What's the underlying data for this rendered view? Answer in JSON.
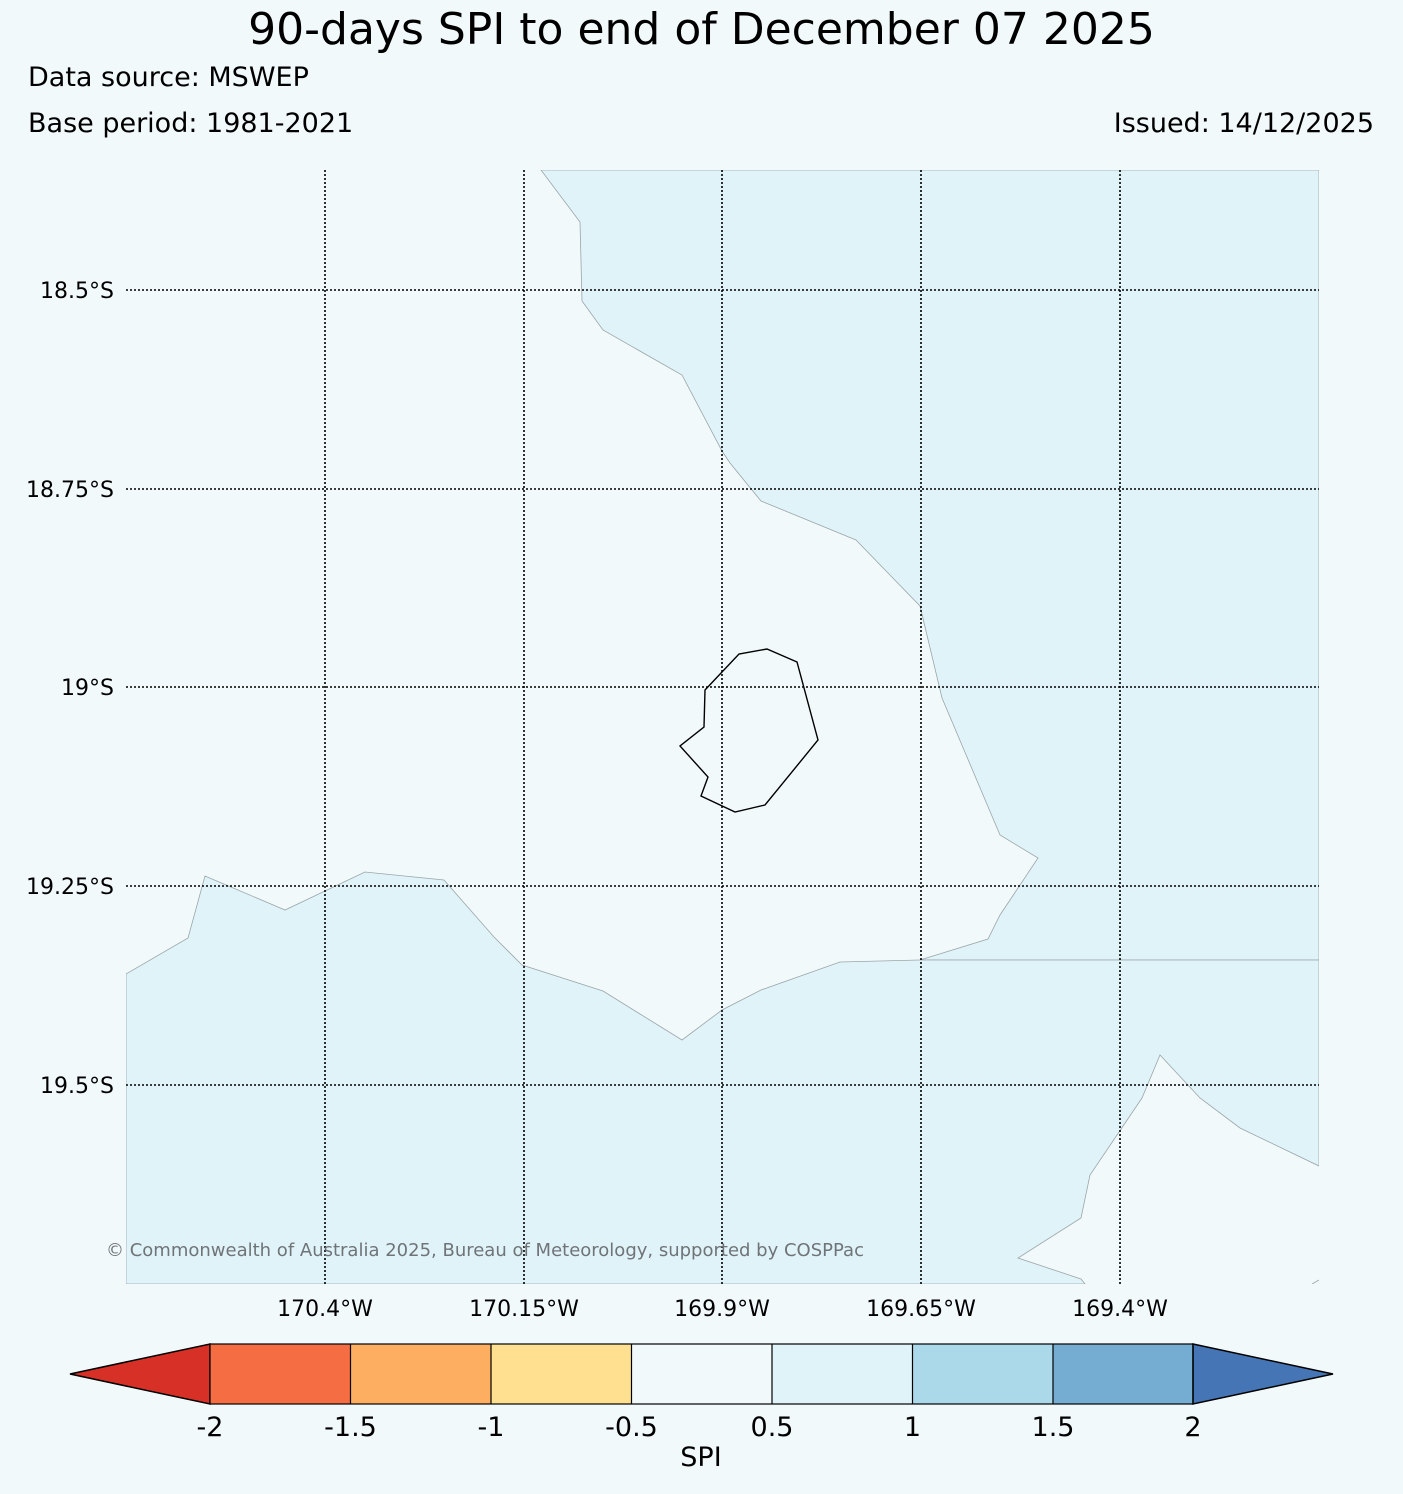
{
  "title": "90-days SPI to end of December 07 2025",
  "data_source": "Data source: MSWEP",
  "base_period": "Base period: 1981-2021",
  "issued": "Issued: 14/12/2025",
  "latitude_labels": [
    "18.5°S",
    "18.75°S",
    "19°S",
    "19.25°S",
    "19.5°S"
  ],
  "longitude_labels": [
    "170.4°W",
    "170.15°W",
    "169.9°W",
    "169.65°W",
    "169.4°W"
  ],
  "copyright": "© Commonwealth of Australia 2025, Bureau of Meteorology, supported by COSPPac",
  "colorbar": {
    "label": "SPI",
    "ticks": [
      "-2",
      "-1.5",
      "-1",
      "-0.5",
      "0.5",
      "1",
      "1.5",
      "2"
    ],
    "colors": {
      "below_min": "#d73027",
      "bins": [
        "#f46d43",
        "#fdae61",
        "#fee090",
        "#f1f9fb",
        "#e0f3f8",
        "#abd9e9",
        "#74add1"
      ],
      "above_max": "#4575b4"
    }
  },
  "map_colors": {
    "background": "#f1f9fb",
    "spi_0_5_to_1": "#e0f3f8",
    "spi_neutral": "#f1f9fb",
    "island_outline": "#000000",
    "contour_line": "#9aa6a9"
  }
}
